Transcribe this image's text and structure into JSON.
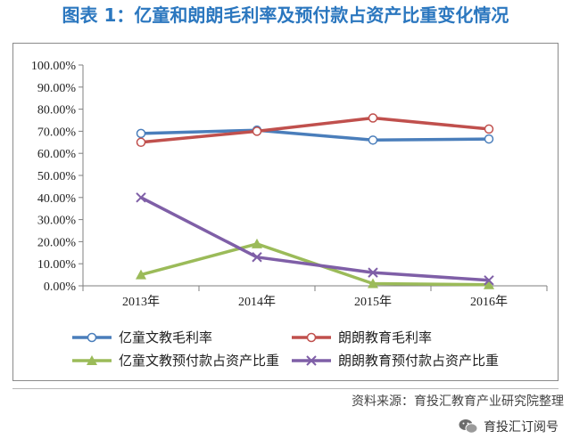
{
  "title": "图表 1：亿童和朗朗毛利率及预付款占资产比重变化情况",
  "source": "资料来源：育投汇教育产业研究院整理",
  "brand": {
    "name": "育投汇订阅号",
    "icon": "wechat-icon"
  },
  "watermark": "育投汇教育产业研究院",
  "colors": {
    "blue": "#4a7ebb",
    "red": "#c0504d",
    "green": "#9bbb59",
    "purple": "#7f5fa7",
    "title": "#2b77bf"
  },
  "chart_data": {
    "type": "line",
    "categories": [
      "2013年",
      "2014年",
      "2015年",
      "2016年"
    ],
    "ylim": [
      0,
      100
    ],
    "y_ticks": [
      "0.00%",
      "10.00%",
      "20.00%",
      "30.00%",
      "40.00%",
      "50.00%",
      "60.00%",
      "70.00%",
      "80.00%",
      "90.00%",
      "100.00%"
    ],
    "grid": false,
    "legend_position": "bottom",
    "series": [
      {
        "name": "亿童文教毛利率",
        "values": [
          69,
          70.5,
          66,
          66.5
        ],
        "color": "#4a7ebb",
        "marker": "circle"
      },
      {
        "name": "朗朗教育毛利率",
        "values": [
          65,
          70,
          76,
          71
        ],
        "color": "#c0504d",
        "marker": "circle"
      },
      {
        "name": "亿童文教预付款占资产比重",
        "values": [
          5,
          19,
          1,
          0.5
        ],
        "color": "#9bbb59",
        "marker": "triangle"
      },
      {
        "name": "朗朗教育预付款占资产比重",
        "values": [
          40,
          13,
          6,
          2.5
        ],
        "color": "#7f5fa7",
        "marker": "x"
      }
    ]
  }
}
